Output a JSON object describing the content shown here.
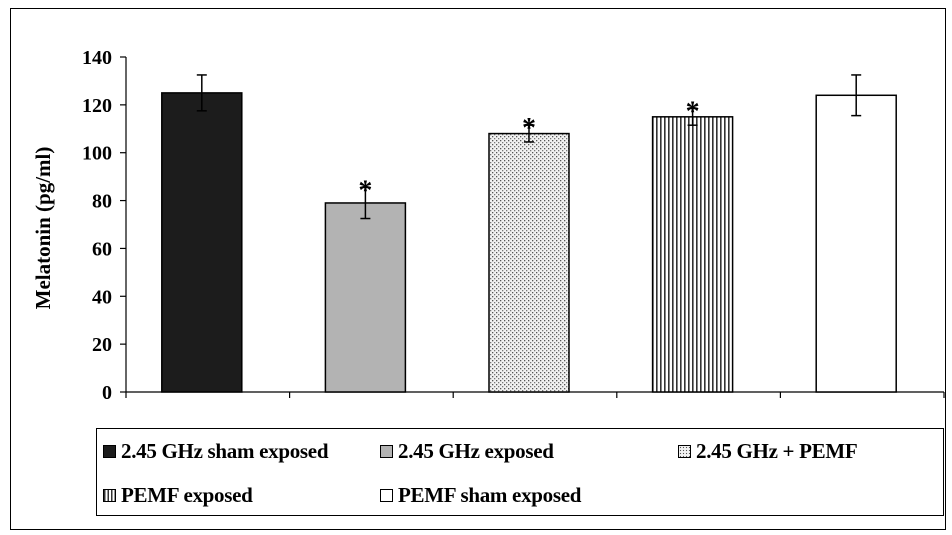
{
  "chart_data": {
    "type": "bar",
    "ylabel": "Melatonin (pg/ml)",
    "ylim": [
      0,
      140
    ],
    "yticks": [
      0,
      20,
      40,
      60,
      80,
      100,
      120,
      140
    ],
    "grid": false,
    "legend_position": "bottom",
    "categories": [
      "2.45 GHz sham exposed",
      "2.45 GHz exposed",
      "2.45 GHz + PEMF",
      "PEMF exposed",
      "PEMF sham exposed"
    ],
    "values": [
      125,
      79,
      108,
      115,
      124
    ],
    "errors": [
      7.5,
      6.5,
      3.5,
      3.5,
      8.5
    ],
    "significance": [
      "",
      "*",
      "*",
      "*",
      ""
    ],
    "fills": [
      "solid-dark",
      "solid-gray",
      "dotted",
      "vertical-stripes",
      "white"
    ],
    "colors": [
      "#1c1c1c",
      "#b3b3b3",
      "#e8e8e8",
      "#ffffff",
      "#ffffff"
    ]
  }
}
